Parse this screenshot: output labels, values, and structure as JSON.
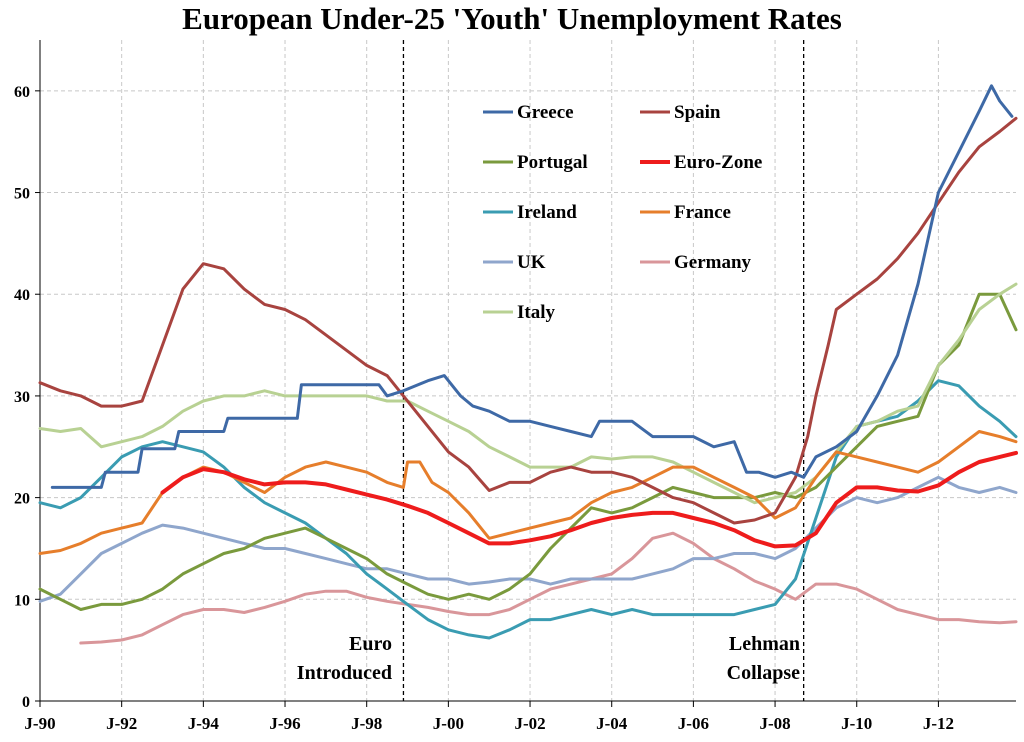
{
  "chart_data": {
    "type": "line",
    "title": "European Under-25 'Youth' Unemployment Rates",
    "xlabel": "",
    "ylabel": "",
    "ylim": [
      0,
      65
    ],
    "xlim": [
      1990.0,
      2013.9
    ],
    "y_ticks": [
      0,
      10,
      20,
      30,
      40,
      50,
      60
    ],
    "x_ticks": [
      {
        "label": "J-90",
        "x": 1990
      },
      {
        "label": "J-92",
        "x": 1992
      },
      {
        "label": "J-94",
        "x": 1994
      },
      {
        "label": "J-96",
        "x": 1996
      },
      {
        "label": "J-98",
        "x": 1998
      },
      {
        "label": "J-00",
        "x": 2000
      },
      {
        "label": "J-02",
        "x": 2002
      },
      {
        "label": "J-04",
        "x": 2004
      },
      {
        "label": "J-06",
        "x": 2006
      },
      {
        "label": "J-08",
        "x": 2008
      },
      {
        "label": "J-10",
        "x": 2010
      },
      {
        "label": "J-12",
        "x": 2012
      }
    ],
    "grid": true,
    "legend_position": "top-center",
    "annotations": [
      {
        "text_lines": [
          "Euro",
          "Introduced"
        ],
        "x": 1998.9
      },
      {
        "text_lines": [
          "Lehman",
          "Collapse"
        ],
        "x": 2008.7
      }
    ],
    "series": [
      {
        "name": "Greece",
        "color": "#3e69a6",
        "width": 3,
        "x": [
          1990.3,
          1991.5,
          1991.6,
          1992.4,
          1992.5,
          1993.3,
          1993.4,
          1994.5,
          1994.6,
          1996.3,
          1996.4,
          1998.3,
          1998.5,
          1998.9,
          1999.5,
          1999.9,
          2000.3,
          2000.6,
          2001.0,
          2001.5,
          2002.0,
          2002.5,
          2003.0,
          2003.5,
          2003.7,
          2004.0,
          2004.5,
          2005.0,
          2005.5,
          2006.0,
          2006.5,
          2007.0,
          2007.3,
          2007.6,
          2008.0,
          2008.4,
          2008.7,
          2009.0,
          2009.5,
          2010.0,
          2010.5,
          2011.0,
          2011.5,
          2012.0,
          2012.5,
          2013.0,
          2013.3,
          2013.5,
          2013.8
        ],
        "y": [
          21,
          21,
          22.5,
          22.5,
          24.8,
          24.8,
          26.5,
          26.5,
          27.8,
          27.8,
          31.1,
          31.1,
          30,
          30.5,
          31.5,
          32,
          30,
          29,
          28.5,
          27.5,
          27.5,
          27,
          26.5,
          26,
          27.5,
          27.5,
          27.5,
          26,
          26,
          26,
          25,
          25.5,
          22.5,
          22.5,
          22,
          22.5,
          22,
          24,
          25,
          26.5,
          30,
          34,
          41,
          50,
          54,
          58,
          60.5,
          59,
          57.5
        ]
      },
      {
        "name": "Spain",
        "color": "#a8433f",
        "width": 3,
        "x": [
          1990.0,
          1990.5,
          1991.0,
          1991.5,
          1992.0,
          1992.5,
          1993.0,
          1993.5,
          1994.0,
          1994.5,
          1995.0,
          1995.5,
          1996.0,
          1996.5,
          1997.0,
          1997.5,
          1998.0,
          1998.5,
          1998.9,
          1999.5,
          2000.0,
          2000.5,
          2001.0,
          2001.5,
          2002.0,
          2002.5,
          2003.0,
          2003.5,
          2004.0,
          2004.5,
          2005.0,
          2005.5,
          2006.0,
          2006.5,
          2007.0,
          2007.5,
          2008.0,
          2008.5,
          2008.8,
          2009.0,
          2009.3,
          2009.5,
          2010.0,
          2010.5,
          2011.0,
          2011.5,
          2012.0,
          2012.5,
          2013.0,
          2013.5,
          2013.9
        ],
        "y": [
          31.3,
          30.5,
          30,
          29,
          29,
          29.5,
          35,
          40.5,
          43,
          42.5,
          40.5,
          39,
          38.5,
          37.5,
          36,
          34.5,
          33,
          32,
          30,
          27,
          24.5,
          23,
          20.7,
          21.5,
          21.5,
          22.5,
          23,
          22.5,
          22.5,
          22,
          21,
          20,
          19.5,
          18.5,
          17.5,
          17.8,
          18.5,
          22,
          26,
          30,
          35,
          38.5,
          40,
          41.5,
          43.5,
          46,
          49,
          52,
          54.5,
          56,
          57.3
        ]
      },
      {
        "name": "Portugal",
        "color": "#7a9a3d",
        "width": 3,
        "x": [
          1990.0,
          1990.5,
          1991.0,
          1991.5,
          1992.0,
          1992.5,
          1993.0,
          1993.5,
          1994.0,
          1994.5,
          1995.0,
          1995.5,
          1996.0,
          1996.5,
          1997.0,
          1997.5,
          1998.0,
          1998.5,
          1999.0,
          1999.5,
          2000.0,
          2000.5,
          2001.0,
          2001.5,
          2002.0,
          2002.5,
          2003.0,
          2003.5,
          2004.0,
          2004.5,
          2005.0,
          2005.5,
          2006.0,
          2006.5,
          2007.0,
          2007.5,
          2008.0,
          2008.5,
          2009.0,
          2009.5,
          2010.0,
          2010.5,
          2011.0,
          2011.5,
          2012.0,
          2012.5,
          2013.0,
          2013.5,
          2013.9
        ],
        "y": [
          11,
          10,
          9,
          9.5,
          9.5,
          10,
          11,
          12.5,
          13.5,
          14.5,
          15,
          16,
          16.5,
          17,
          16,
          15,
          14,
          12.5,
          11.5,
          10.5,
          10,
          10.5,
          10,
          11,
          12.5,
          15,
          17,
          19,
          18.5,
          19,
          20,
          21,
          20.5,
          20,
          20,
          20,
          20.5,
          20,
          21,
          23,
          25,
          27,
          27.5,
          28,
          33,
          35,
          40,
          40,
          36.5
        ]
      },
      {
        "name": "Euro-Zone",
        "color": "#ee1c1c",
        "width": 4,
        "x": [
          1993.0,
          1993.5,
          1994.0,
          1994.5,
          1995.0,
          1995.5,
          1996.0,
          1996.5,
          1997.0,
          1997.5,
          1998.0,
          1998.5,
          1999.0,
          1999.5,
          2000.0,
          2000.5,
          2001.0,
          2001.5,
          2002.0,
          2002.5,
          2003.0,
          2003.5,
          2004.0,
          2004.5,
          2005.0,
          2005.5,
          2006.0,
          2006.5,
          2007.0,
          2007.5,
          2008.0,
          2008.5,
          2009.0,
          2009.5,
          2010.0,
          2010.5,
          2011.0,
          2011.5,
          2012.0,
          2012.5,
          2013.0,
          2013.5,
          2013.9
        ],
        "y": [
          20.5,
          22,
          22.8,
          22.5,
          21.8,
          21.3,
          21.5,
          21.5,
          21.3,
          20.8,
          20.3,
          19.8,
          19.2,
          18.5,
          17.5,
          16.5,
          15.5,
          15.5,
          15.8,
          16.2,
          16.8,
          17.5,
          18,
          18.3,
          18.5,
          18.5,
          18,
          17.5,
          16.8,
          15.8,
          15.2,
          15.3,
          16.5,
          19.5,
          21,
          21,
          20.7,
          20.6,
          21.2,
          22.5,
          23.5,
          24,
          24.4
        ]
      },
      {
        "name": "Ireland",
        "color": "#3a9cb2",
        "width": 3,
        "x": [
          1990.0,
          1990.5,
          1991.0,
          1991.5,
          1992.0,
          1992.5,
          1993.0,
          1993.5,
          1994.0,
          1994.5,
          1995.0,
          1995.5,
          1996.0,
          1996.5,
          1997.0,
          1997.5,
          1998.0,
          1998.5,
          1999.0,
          1999.5,
          2000.0,
          2000.5,
          2001.0,
          2001.5,
          2002.0,
          2002.5,
          2003.0,
          2003.5,
          2004.0,
          2004.5,
          2005.0,
          2005.5,
          2006.0,
          2006.5,
          2007.0,
          2007.5,
          2008.0,
          2008.5,
          2009.0,
          2009.5,
          2010.0,
          2010.5,
          2011.0,
          2011.5,
          2012.0,
          2012.5,
          2013.0,
          2013.5,
          2013.9
        ],
        "y": [
          19.5,
          19,
          20,
          22,
          24,
          25,
          25.5,
          25,
          24.5,
          23,
          21,
          19.5,
          18.5,
          17.5,
          16,
          14.5,
          12.5,
          11,
          9.5,
          8,
          7,
          6.5,
          6.2,
          7,
          8,
          8,
          8.5,
          9,
          8.5,
          9,
          8.5,
          8.5,
          8.5,
          8.5,
          8.5,
          9,
          9.5,
          12,
          18,
          24,
          27,
          27.5,
          28,
          29.5,
          31.5,
          31,
          29,
          27.5,
          26
        ]
      },
      {
        "name": "France",
        "color": "#e67e2b",
        "width": 3,
        "x": [
          1990.0,
          1990.5,
          1991.0,
          1991.5,
          1992.0,
          1992.5,
          1993.0,
          1993.5,
          1994.0,
          1994.5,
          1995.0,
          1995.5,
          1996.0,
          1996.5,
          1997.0,
          1997.5,
          1998.0,
          1998.5,
          1998.9,
          1999.0,
          1999.3,
          1999.6,
          2000.0,
          2000.5,
          2001.0,
          2001.5,
          2002.0,
          2002.5,
          2003.0,
          2003.5,
          2004.0,
          2004.5,
          2005.0,
          2005.5,
          2006.0,
          2006.5,
          2007.0,
          2007.5,
          2008.0,
          2008.5,
          2009.0,
          2009.5,
          2010.0,
          2010.5,
          2011.0,
          2011.5,
          2012.0,
          2012.5,
          2013.0,
          2013.5,
          2013.9
        ],
        "y": [
          14.5,
          14.8,
          15.5,
          16.5,
          17,
          17.5,
          20.5,
          22,
          23,
          22.5,
          21.5,
          20.5,
          22,
          23,
          23.5,
          23,
          22.5,
          21.5,
          21,
          23.5,
          23.5,
          21.5,
          20.5,
          18.5,
          16,
          16.5,
          17,
          17.5,
          18,
          19.5,
          20.5,
          21,
          22,
          23,
          23,
          22,
          21,
          20,
          18,
          19,
          22,
          24.5,
          24,
          23.5,
          23,
          22.5,
          23.5,
          25,
          26.5,
          26,
          25.5
        ]
      },
      {
        "name": "UK",
        "color": "#8fa6cc",
        "width": 3,
        "x": [
          1990.0,
          1990.5,
          1991.0,
          1991.5,
          1992.0,
          1992.5,
          1993.0,
          1993.5,
          1994.0,
          1994.5,
          1995.0,
          1995.5,
          1996.0,
          1996.5,
          1997.0,
          1997.5,
          1998.0,
          1998.5,
          1999.0,
          1999.5,
          2000.0,
          2000.5,
          2001.0,
          2001.5,
          2002.0,
          2002.5,
          2003.0,
          2003.5,
          2004.0,
          2004.5,
          2005.0,
          2005.5,
          2006.0,
          2006.5,
          2007.0,
          2007.5,
          2008.0,
          2008.5,
          2009.0,
          2009.5,
          2010.0,
          2010.5,
          2011.0,
          2011.5,
          2012.0,
          2012.5,
          2013.0,
          2013.5,
          2013.9
        ],
        "y": [
          9.8,
          10.5,
          12.5,
          14.5,
          15.5,
          16.5,
          17.3,
          17,
          16.5,
          16,
          15.5,
          15,
          15,
          14.5,
          14,
          13.5,
          13,
          13,
          12.5,
          12,
          12,
          11.5,
          11.7,
          12,
          12,
          11.5,
          12,
          12,
          12,
          12,
          12.5,
          13,
          14,
          14,
          14.5,
          14.5,
          14,
          15,
          17,
          19,
          20,
          19.5,
          20,
          21,
          22,
          21,
          20.5,
          21,
          20.5
        ]
      },
      {
        "name": "Germany",
        "color": "#d9969a",
        "width": 3,
        "x": [
          1991.0,
          1991.5,
          1992.0,
          1992.5,
          1993.0,
          1993.5,
          1994.0,
          1994.5,
          1995.0,
          1995.5,
          1996.0,
          1996.5,
          1997.0,
          1997.5,
          1998.0,
          1998.5,
          1999.0,
          1999.5,
          2000.0,
          2000.5,
          2001.0,
          2001.5,
          2002.0,
          2002.5,
          2003.0,
          2003.5,
          2004.0,
          2004.5,
          2005.0,
          2005.5,
          2006.0,
          2006.5,
          2007.0,
          2007.5,
          2008.0,
          2008.5,
          2009.0,
          2009.5,
          2010.0,
          2010.5,
          2011.0,
          2011.5,
          2012.0,
          2012.5,
          2013.0,
          2013.5,
          2013.9
        ],
        "y": [
          5.7,
          5.8,
          6,
          6.5,
          7.5,
          8.5,
          9,
          9,
          8.7,
          9.2,
          9.8,
          10.5,
          10.8,
          10.8,
          10.2,
          9.8,
          9.5,
          9.2,
          8.8,
          8.5,
          8.5,
          9,
          10,
          11,
          11.5,
          12,
          12.5,
          14,
          16,
          16.5,
          15.5,
          14,
          13,
          11.8,
          11,
          10,
          11.5,
          11.5,
          11,
          10,
          9,
          8.5,
          8,
          8,
          7.8,
          7.7,
          7.8
        ]
      },
      {
        "name": "Italy",
        "color": "#b8d193",
        "width": 3,
        "x": [
          1990.0,
          1990.5,
          1991.0,
          1991.5,
          1992.0,
          1992.5,
          1993.0,
          1993.5,
          1994.0,
          1994.5,
          1995.0,
          1995.5,
          1996.0,
          1996.5,
          1997.0,
          1997.5,
          1998.0,
          1998.5,
          1999.0,
          1999.5,
          2000.0,
          2000.5,
          2001.0,
          2001.5,
          2002.0,
          2002.5,
          2003.0,
          2003.5,
          2004.0,
          2004.5,
          2005.0,
          2005.5,
          2006.0,
          2006.5,
          2007.0,
          2007.5,
          2008.0,
          2008.5,
          2009.0,
          2009.5,
          2010.0,
          2010.5,
          2011.0,
          2011.5,
          2012.0,
          2012.5,
          2013.0,
          2013.5,
          2013.9
        ],
        "y": [
          26.8,
          26.5,
          26.8,
          25,
          25.5,
          26,
          27,
          28.5,
          29.5,
          30,
          30,
          30.5,
          30,
          30,
          30,
          30,
          30,
          29.5,
          29.5,
          28.5,
          27.5,
          26.5,
          25,
          24,
          23,
          23,
          23,
          24,
          23.8,
          24,
          24,
          23.5,
          22.5,
          21.5,
          20.5,
          19.5,
          20,
          20.5,
          22,
          24.5,
          27,
          27.5,
          28.5,
          29,
          33,
          35.5,
          38.5,
          40,
          41
        ]
      }
    ],
    "legend": [
      {
        "label": "Greece",
        "color": "#3e69a6"
      },
      {
        "label": "Spain",
        "color": "#a8433f"
      },
      {
        "label": "Portugal",
        "color": "#7a9a3d"
      },
      {
        "label": "Euro-Zone",
        "color": "#ee1c1c"
      },
      {
        "label": "Ireland",
        "color": "#3a9cb2"
      },
      {
        "label": "France",
        "color": "#e67e2b"
      },
      {
        "label": "UK",
        "color": "#8fa6cc"
      },
      {
        "label": "Germany",
        "color": "#d9969a"
      },
      {
        "label": "Italy",
        "color": "#b8d193"
      }
    ]
  }
}
